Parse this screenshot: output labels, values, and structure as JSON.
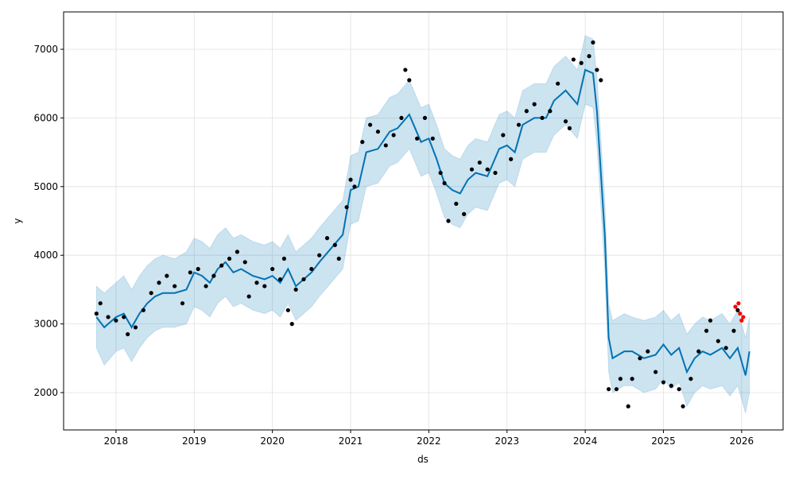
{
  "chart_data": {
    "type": "forecast",
    "xlabel": "ds",
    "ylabel": "y",
    "xlim": [
      2017.33,
      2026.53
    ],
    "ylim": [
      1456,
      7544
    ],
    "xticks": [
      2018,
      2019,
      2020,
      2021,
      2022,
      2023,
      2024,
      2025,
      2026
    ],
    "yticks": [
      2000,
      3000,
      4000,
      5000,
      6000,
      7000
    ],
    "grid": true,
    "series": [
      {
        "style": "band",
        "color": "#0072b2",
        "x": [
          2017.75,
          2017.85,
          2018.0,
          2018.1,
          2018.2,
          2018.3,
          2018.4,
          2018.5,
          2018.6,
          2018.75,
          2018.9,
          2019.0,
          2019.1,
          2019.2,
          2019.3,
          2019.4,
          2019.5,
          2019.6,
          2019.75,
          2019.9,
          2020.0,
          2020.1,
          2020.2,
          2020.3,
          2020.4,
          2020.5,
          2020.6,
          2020.75,
          2020.9,
          2021.0,
          2021.1,
          2021.2,
          2021.35,
          2021.5,
          2021.6,
          2021.75,
          2021.9,
          2022.0,
          2022.1,
          2022.2,
          2022.3,
          2022.4,
          2022.5,
          2022.6,
          2022.75,
          2022.9,
          2023.0,
          2023.1,
          2023.2,
          2023.35,
          2023.5,
          2023.6,
          2023.75,
          2023.9,
          2024.0,
          2024.1,
          2024.15,
          2024.25,
          2024.3,
          2024.35,
          2024.5,
          2024.6,
          2024.75,
          2024.9,
          2025.0,
          2025.1,
          2025.2,
          2025.3,
          2025.4,
          2025.5,
          2025.6,
          2025.75,
          2025.85,
          2025.95,
          2026.05,
          2026.1
        ],
        "upper": [
          3550,
          3450,
          3600,
          3700,
          3500,
          3700,
          3850,
          3950,
          4000,
          3950,
          4050,
          4250,
          4200,
          4100,
          4300,
          4400,
          4250,
          4300,
          4200,
          4150,
          4200,
          4100,
          4300,
          4050,
          4150,
          4250,
          4400,
          4600,
          4800,
          5450,
          5500,
          6000,
          6050,
          6300,
          6350,
          6550,
          6150,
          6200,
          5900,
          5550,
          5450,
          5400,
          5600,
          5700,
          5650,
          6050,
          6100,
          6000,
          6400,
          6500,
          6500,
          6750,
          6900,
          6700,
          7200,
          7150,
          6600,
          4800,
          3300,
          3050,
          3150,
          3100,
          3050,
          3100,
          3200,
          3050,
          3150,
          2850,
          3000,
          3100,
          3050,
          3150,
          3000,
          3200,
          2800,
          3100
        ],
        "lower": [
          2650,
          2400,
          2600,
          2650,
          2450,
          2650,
          2800,
          2900,
          2950,
          2950,
          3000,
          3250,
          3200,
          3100,
          3300,
          3400,
          3250,
          3300,
          3200,
          3150,
          3200,
          3100,
          3300,
          3050,
          3150,
          3250,
          3400,
          3600,
          3800,
          4450,
          4500,
          5000,
          5050,
          5300,
          5350,
          5550,
          5150,
          5200,
          4900,
          4550,
          4450,
          4400,
          4600,
          4700,
          4650,
          5050,
          5100,
          5000,
          5400,
          5500,
          5500,
          5750,
          5900,
          5700,
          6200,
          6150,
          5600,
          3800,
          2300,
          2000,
          2100,
          2100,
          2000,
          2050,
          2200,
          2050,
          2150,
          1800,
          2000,
          2100,
          2050,
          2100,
          1950,
          2100,
          1700,
          2000
        ]
      },
      {
        "style": "line",
        "color": "#0072b2",
        "x": [
          2017.75,
          2017.85,
          2018.0,
          2018.1,
          2018.2,
          2018.3,
          2018.4,
          2018.5,
          2018.6,
          2018.75,
          2018.9,
          2019.0,
          2019.1,
          2019.2,
          2019.3,
          2019.4,
          2019.5,
          2019.6,
          2019.75,
          2019.9,
          2020.0,
          2020.1,
          2020.2,
          2020.3,
          2020.4,
          2020.5,
          2020.6,
          2020.75,
          2020.9,
          2021.0,
          2021.1,
          2021.2,
          2021.35,
          2021.5,
          2021.6,
          2021.75,
          2021.9,
          2022.0,
          2022.1,
          2022.2,
          2022.3,
          2022.4,
          2022.5,
          2022.6,
          2022.75,
          2022.9,
          2023.0,
          2023.1,
          2023.2,
          2023.35,
          2023.5,
          2023.6,
          2023.75,
          2023.9,
          2024.0,
          2024.1,
          2024.15,
          2024.25,
          2024.3,
          2024.35,
          2024.5,
          2024.6,
          2024.75,
          2024.9,
          2025.0,
          2025.1,
          2025.2,
          2025.3,
          2025.4,
          2025.5,
          2025.6,
          2025.75,
          2025.85,
          2025.95,
          2026.05,
          2026.1
        ],
        "values": [
          3100,
          2950,
          3100,
          3150,
          2950,
          3150,
          3300,
          3400,
          3450,
          3450,
          3500,
          3750,
          3700,
          3600,
          3800,
          3900,
          3750,
          3800,
          3700,
          3650,
          3700,
          3600,
          3800,
          3550,
          3650,
          3750,
          3900,
          4100,
          4300,
          4950,
          5000,
          5500,
          5550,
          5800,
          5850,
          6050,
          5650,
          5700,
          5400,
          5050,
          4950,
          4900,
          5100,
          5200,
          5150,
          5550,
          5600,
          5500,
          5900,
          6000,
          6000,
          6250,
          6400,
          6200,
          6700,
          6650,
          6100,
          4300,
          2800,
          2500,
          2600,
          2600,
          2500,
          2550,
          2700,
          2550,
          2650,
          2300,
          2500,
          2600,
          2550,
          2650,
          2500,
          2650,
          2250,
          2600
        ]
      },
      {
        "style": "points",
        "color": "#000000",
        "x": [
          2017.75,
          2017.8,
          2017.9,
          2018.0,
          2018.1,
          2018.15,
          2018.25,
          2018.35,
          2018.45,
          2018.55,
          2018.65,
          2018.75,
          2018.85,
          2018.95,
          2019.05,
          2019.15,
          2019.25,
          2019.35,
          2019.45,
          2019.55,
          2019.65,
          2019.7,
          2019.8,
          2019.9,
          2020.0,
          2020.1,
          2020.15,
          2020.2,
          2020.25,
          2020.3,
          2020.4,
          2020.5,
          2020.6,
          2020.7,
          2020.8,
          2020.85,
          2020.95,
          2021.0,
          2021.05,
          2021.15,
          2021.25,
          2021.35,
          2021.45,
          2021.55,
          2021.65,
          2021.7,
          2021.75,
          2021.85,
          2021.95,
          2022.05,
          2022.15,
          2022.2,
          2022.25,
          2022.35,
          2022.45,
          2022.55,
          2022.65,
          2022.75,
          2022.85,
          2022.95,
          2023.05,
          2023.15,
          2023.25,
          2023.35,
          2023.45,
          2023.55,
          2023.65,
          2023.75,
          2023.8,
          2023.85,
          2023.95,
          2024.05,
          2024.1,
          2024.15,
          2024.2,
          2024.3,
          2024.4,
          2024.45,
          2024.55,
          2024.6,
          2024.7,
          2024.8,
          2024.9,
          2025.0,
          2025.1,
          2025.2,
          2025.25,
          2025.35,
          2025.45,
          2025.55,
          2025.6,
          2025.7,
          2025.8,
          2025.9,
          2025.95
        ],
        "values": [
          3150,
          3300,
          3100,
          3050,
          3100,
          2850,
          2950,
          3200,
          3450,
          3600,
          3700,
          3550,
          3300,
          3750,
          3800,
          3550,
          3700,
          3850,
          3950,
          4050,
          3900,
          3400,
          3600,
          3550,
          3800,
          3650,
          3950,
          3200,
          3000,
          3500,
          3650,
          3800,
          4000,
          4250,
          4150,
          3950,
          4700,
          5100,
          5000,
          5650,
          5900,
          5800,
          5600,
          5750,
          6000,
          6700,
          6550,
          5700,
          6000,
          5700,
          5200,
          5050,
          4500,
          4750,
          4600,
          5250,
          5350,
          5250,
          5200,
          5750,
          5400,
          5900,
          6100,
          6200,
          6000,
          6100,
          6500,
          5950,
          5850,
          6850,
          6800,
          6900,
          7100,
          6700,
          6550,
          2050,
          2050,
          2200,
          1800,
          2200,
          2500,
          2600,
          2300,
          2150,
          2100,
          2050,
          1800,
          2200,
          2600,
          2900,
          3050,
          2750,
          2650,
          2900,
          3200
        ]
      },
      {
        "style": "points",
        "color": "#ff0000",
        "x": [
          2025.92,
          2025.96,
          2025.98,
          2026.0,
          2026.02
        ],
        "values": [
          3250,
          3300,
          3150,
          3050,
          3100
        ]
      }
    ]
  }
}
